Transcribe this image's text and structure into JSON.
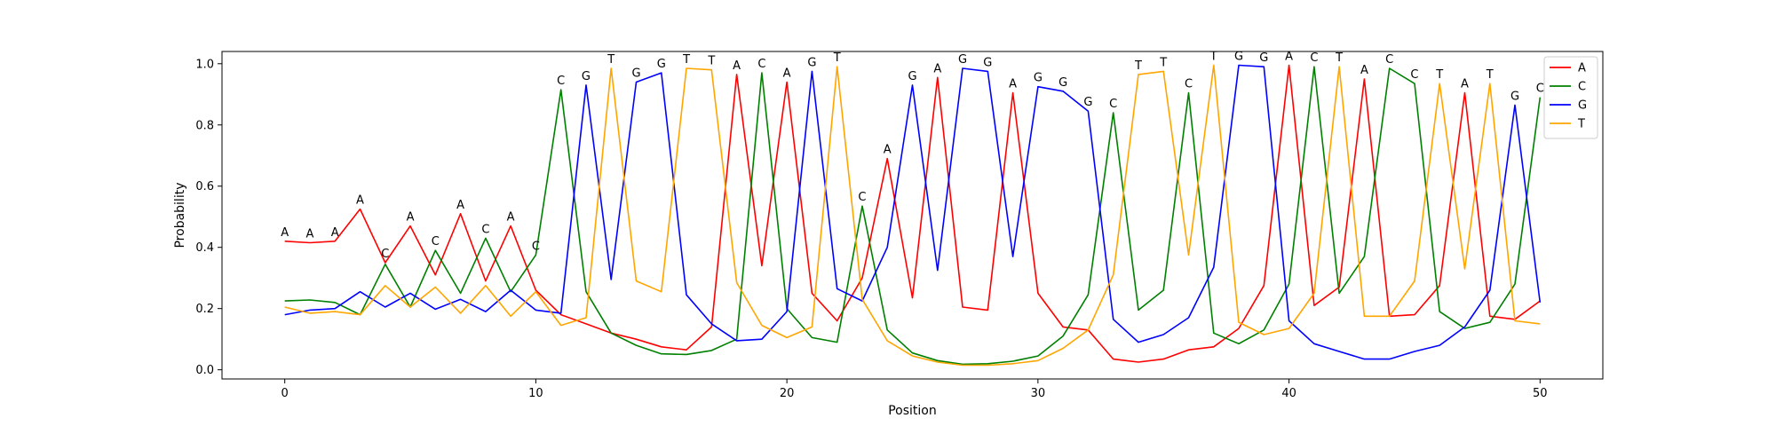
{
  "chart_data": {
    "type": "line",
    "title": "",
    "xlabel": "Position",
    "ylabel": "Probability",
    "xlim": [
      -2.5,
      52.5
    ],
    "ylim": [
      -0.03,
      1.04
    ],
    "xticks": [
      0,
      10,
      20,
      30,
      40,
      50
    ],
    "yticks": [
      0.0,
      0.2,
      0.4,
      0.6,
      0.8,
      1.0
    ],
    "grid": false,
    "legend_position": "top-right",
    "x": [
      0,
      1,
      2,
      3,
      4,
      5,
      6,
      7,
      8,
      9,
      10,
      11,
      12,
      13,
      14,
      15,
      16,
      17,
      18,
      19,
      20,
      21,
      22,
      23,
      24,
      25,
      26,
      27,
      28,
      29,
      30,
      31,
      32,
      33,
      34,
      35,
      36,
      37,
      38,
      39,
      40,
      41,
      42,
      43,
      44,
      45,
      46,
      47,
      48,
      49,
      50
    ],
    "series": [
      {
        "name": "A",
        "color": "#ff0000",
        "values": [
          0.42,
          0.415,
          0.42,
          0.525,
          0.35,
          0.47,
          0.31,
          0.51,
          0.29,
          0.47,
          0.26,
          0.18,
          0.15,
          0.12,
          0.1,
          0.075,
          0.065,
          0.14,
          0.965,
          0.34,
          0.94,
          0.25,
          0.16,
          0.3,
          0.69,
          0.235,
          0.955,
          0.205,
          0.195,
          0.905,
          0.25,
          0.14,
          0.13,
          0.035,
          0.025,
          0.035,
          0.065,
          0.075,
          0.135,
          0.275,
          0.995,
          0.21,
          0.27,
          0.95,
          0.175,
          0.18,
          0.275,
          0.905,
          0.175,
          0.165,
          0.225
        ]
      },
      {
        "name": "C",
        "color": "#008000",
        "values": [
          0.225,
          0.228,
          0.22,
          0.18,
          0.345,
          0.205,
          0.39,
          0.25,
          0.43,
          0.255,
          0.375,
          0.915,
          0.255,
          0.12,
          0.08,
          0.052,
          0.05,
          0.063,
          0.1,
          0.97,
          0.2,
          0.105,
          0.09,
          0.535,
          0.13,
          0.055,
          0.03,
          0.018,
          0.02,
          0.028,
          0.045,
          0.11,
          0.245,
          0.84,
          0.195,
          0.26,
          0.905,
          0.12,
          0.085,
          0.13,
          0.28,
          0.99,
          0.25,
          0.37,
          0.985,
          0.935,
          0.19,
          0.135,
          0.155,
          0.28,
          0.89
        ]
      },
      {
        "name": "G",
        "color": "#0000ff",
        "values": [
          0.18,
          0.195,
          0.2,
          0.255,
          0.205,
          0.25,
          0.198,
          0.23,
          0.19,
          0.26,
          0.195,
          0.185,
          0.93,
          0.295,
          0.94,
          0.97,
          0.245,
          0.15,
          0.095,
          0.1,
          0.19,
          0.975,
          0.265,
          0.225,
          0.4,
          0.93,
          0.325,
          0.985,
          0.975,
          0.37,
          0.925,
          0.91,
          0.845,
          0.165,
          0.09,
          0.115,
          0.17,
          0.335,
          0.995,
          0.99,
          0.16,
          0.085,
          0.06,
          0.035,
          0.035,
          0.06,
          0.08,
          0.14,
          0.26,
          0.865,
          0.22
        ]
      },
      {
        "name": "T",
        "color": "#ffa500",
        "values": [
          0.205,
          0.185,
          0.19,
          0.18,
          0.275,
          0.205,
          0.27,
          0.185,
          0.275,
          0.175,
          0.255,
          0.145,
          0.17,
          0.985,
          0.29,
          0.255,
          0.985,
          0.98,
          0.285,
          0.145,
          0.105,
          0.14,
          0.99,
          0.23,
          0.095,
          0.045,
          0.025,
          0.015,
          0.015,
          0.02,
          0.03,
          0.07,
          0.13,
          0.31,
          0.965,
          0.975,
          0.375,
          0.995,
          0.155,
          0.115,
          0.135,
          0.25,
          0.99,
          0.175,
          0.175,
          0.29,
          0.935,
          0.33,
          0.935,
          0.16,
          0.15
        ]
      }
    ],
    "annotations": [
      "A",
      "A",
      "A",
      "A",
      "C",
      "A",
      "C",
      "A",
      "C",
      "A",
      "C",
      "C",
      "G",
      "T",
      "G",
      "G",
      "T",
      "T",
      "A",
      "C",
      "A",
      "G",
      "T",
      "C",
      "A",
      "G",
      "A",
      "G",
      "G",
      "A",
      "G",
      "G",
      "G",
      "C",
      "T",
      "T",
      "C",
      "T",
      "G",
      "G",
      "A",
      "C",
      "T",
      "A",
      "C",
      "C",
      "T",
      "A",
      "T",
      "G",
      "C"
    ]
  }
}
